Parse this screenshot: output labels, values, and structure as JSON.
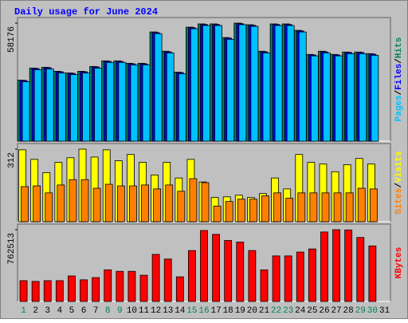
{
  "chart_data": [
    {
      "type": "bar",
      "title": "Daily usage for June 2024",
      "categories": [
        "1",
        "2",
        "3",
        "4",
        "5",
        "6",
        "7",
        "8",
        "9",
        "10",
        "11",
        "12",
        "13",
        "14",
        "15",
        "16",
        "17",
        "18",
        "19",
        "20",
        "21",
        "22",
        "23",
        "24",
        "25",
        "26",
        "27",
        "28",
        "29",
        "30",
        "31"
      ],
      "category_colors": [
        "#00805c",
        "#000000",
        "#000000",
        "#000000",
        "#000000",
        "#000000",
        "#000000",
        "#00805c",
        "#00805c",
        "#000000",
        "#000000",
        "#000000",
        "#000000",
        "#000000",
        "#00805c",
        "#00805c",
        "#000000",
        "#000000",
        "#000000",
        "#000000",
        "#000000",
        "#00805c",
        "#00805c",
        "#000000",
        "#000000",
        "#000000",
        "#000000",
        "#000000",
        "#00805c",
        "#00805c",
        "#000000"
      ],
      "legend_separator": "/",
      "ylim": [
        0,
        58176
      ],
      "yticks": [
        58176
      ],
      "series": [
        {
          "name": "Hits",
          "color": "#00805c",
          "values": [
            30080,
            36016,
            36410,
            34430,
            33640,
            34430,
            36810,
            39580,
            39580,
            38390,
            38390,
            53830,
            44330,
            34040,
            56200,
            57790,
            57790,
            51060,
            58176,
            57390,
            44330,
            57790,
            57790,
            54620,
            42750,
            44330,
            42750,
            43930,
            43930,
            43140,
            null
          ]
        },
        {
          "name": "Files",
          "color": "#0000ff",
          "values": [
            29900,
            35800,
            36200,
            34200,
            33400,
            34200,
            36600,
            39300,
            39300,
            38100,
            38100,
            53500,
            44000,
            33800,
            55900,
            57500,
            57500,
            50800,
            57900,
            57100,
            44000,
            57500,
            57500,
            54300,
            42500,
            44000,
            42500,
            43700,
            43700,
            42900,
            null
          ]
        },
        {
          "name": "Pages",
          "color": "#00c0ff",
          "values": [
            29300,
            35200,
            35600,
            33600,
            32800,
            33600,
            36000,
            38800,
            38800,
            37600,
            37600,
            53000,
            43500,
            33200,
            55400,
            57000,
            57000,
            50200,
            57400,
            56600,
            43500,
            57000,
            57000,
            53800,
            42000,
            43500,
            42000,
            43100,
            43100,
            42300,
            null
          ]
        }
      ]
    },
    {
      "type": "bar",
      "ylim": [
        0,
        312
      ],
      "yticks": [
        312
      ],
      "series": [
        {
          "name": "Visits",
          "color": "#ffff00",
          "values": [
            309,
            268,
            211,
            255,
            275,
            312,
            278,
            309,
            262,
            289,
            255,
            201,
            255,
            188,
            268,
            171,
            104,
            107,
            114,
            104,
            121,
            188,
            141,
            289,
            255,
            248,
            215,
            245,
            272,
            248,
            null
          ]
        },
        {
          "name": "Sites",
          "color": "#ff8000",
          "values": [
            151,
            154,
            124,
            158,
            181,
            181,
            144,
            161,
            154,
            154,
            158,
            141,
            158,
            131,
            185,
            168,
            67,
            87,
            97,
            97,
            111,
            124,
            101,
            124,
            124,
            124,
            124,
            124,
            144,
            141,
            null
          ]
        }
      ]
    },
    {
      "type": "bar",
      "ylim": [
        0,
        762513
      ],
      "yticks": [
        762513
      ],
      "series": [
        {
          "name": "KBytes",
          "color": "#ff0000",
          "values": [
            221000,
            213000,
            221000,
            221000,
            271000,
            230000,
            254000,
            336000,
            320000,
            320000,
            279000,
            500000,
            451000,
            262000,
            541000,
            754000,
            713000,
            648000,
            631000,
            541000,
            336000,
            484000,
            484000,
            525000,
            558000,
            738000,
            762513,
            760000,
            680000,
            590000,
            null
          ]
        }
      ]
    }
  ]
}
